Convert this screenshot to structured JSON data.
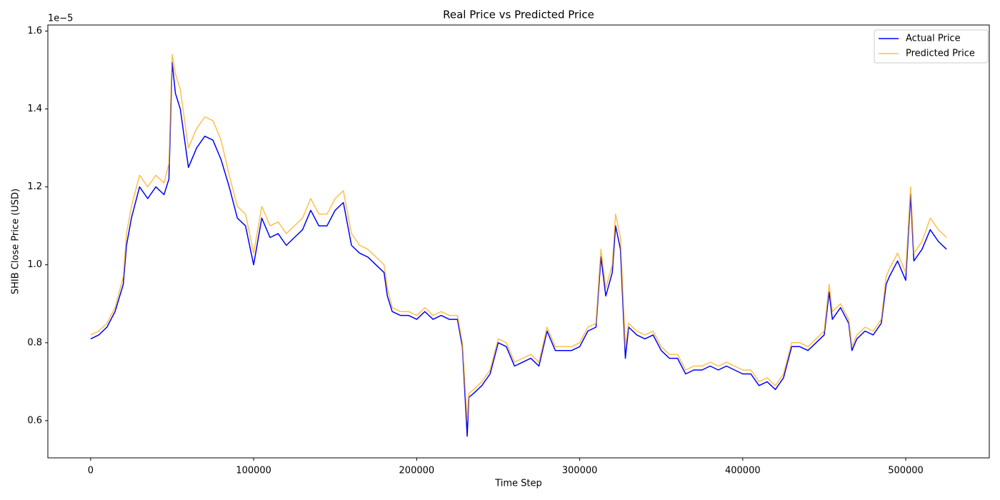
{
  "chart_data": {
    "type": "line",
    "title": "Real Price vs Predicted Price",
    "x_label": "Time Step",
    "y_label": "SHIB Close Price (USD)",
    "offset_text": "1e−5",
    "x": [
      0,
      5000,
      10000,
      15000,
      20000,
      22000,
      25000,
      30000,
      35000,
      40000,
      45000,
      48000,
      50000,
      52000,
      55000,
      60000,
      65000,
      70000,
      75000,
      80000,
      85000,
      90000,
      95000,
      100000,
      105000,
      110000,
      115000,
      120000,
      125000,
      130000,
      135000,
      140000,
      145000,
      150000,
      155000,
      160000,
      165000,
      170000,
      175000,
      180000,
      182000,
      185000,
      190000,
      195000,
      200000,
      205000,
      210000,
      215000,
      220000,
      225000,
      228000,
      231000,
      232000,
      235000,
      240000,
      245000,
      250000,
      255000,
      260000,
      265000,
      270000,
      275000,
      280000,
      285000,
      290000,
      295000,
      300000,
      305000,
      310000,
      313000,
      316000,
      320000,
      322000,
      325000,
      328000,
      330000,
      335000,
      340000,
      345000,
      350000,
      355000,
      360000,
      365000,
      370000,
      375000,
      380000,
      385000,
      390000,
      395000,
      400000,
      405000,
      410000,
      415000,
      420000,
      425000,
      430000,
      435000,
      440000,
      445000,
      450000,
      453000,
      455000,
      460000,
      465000,
      467000,
      470000,
      475000,
      480000,
      485000,
      488000,
      490000,
      495000,
      500000,
      503000,
      505000,
      510000,
      515000,
      520000,
      525000
    ],
    "series": [
      {
        "name": "Actual Price",
        "color": "#0000ff",
        "opacity": 1,
        "values": [
          0.81,
          0.82,
          0.84,
          0.88,
          0.95,
          1.05,
          1.12,
          1.2,
          1.17,
          1.2,
          1.18,
          1.22,
          1.52,
          1.44,
          1.4,
          1.25,
          1.3,
          1.33,
          1.32,
          1.27,
          1.2,
          1.12,
          1.1,
          1.0,
          1.12,
          1.07,
          1.08,
          1.05,
          1.07,
          1.09,
          1.14,
          1.1,
          1.1,
          1.14,
          1.16,
          1.05,
          1.03,
          1.02,
          1.0,
          0.98,
          0.92,
          0.88,
          0.87,
          0.87,
          0.86,
          0.88,
          0.86,
          0.87,
          0.86,
          0.86,
          0.79,
          0.56,
          0.66,
          0.67,
          0.69,
          0.72,
          0.8,
          0.79,
          0.74,
          0.75,
          0.76,
          0.74,
          0.83,
          0.78,
          0.78,
          0.78,
          0.79,
          0.83,
          0.84,
          1.02,
          0.92,
          0.98,
          1.1,
          1.04,
          0.76,
          0.84,
          0.82,
          0.81,
          0.82,
          0.78,
          0.76,
          0.76,
          0.72,
          0.73,
          0.73,
          0.74,
          0.73,
          0.74,
          0.73,
          0.72,
          0.72,
          0.69,
          0.7,
          0.68,
          0.71,
          0.79,
          0.79,
          0.78,
          0.8,
          0.82,
          0.93,
          0.86,
          0.89,
          0.85,
          0.78,
          0.81,
          0.83,
          0.82,
          0.85,
          0.95,
          0.97,
          1.01,
          0.96,
          1.18,
          1.01,
          1.04,
          1.09,
          1.06,
          1.04
        ]
      },
      {
        "name": "Predicted Price",
        "color": "#ffa500",
        "opacity": 0.7,
        "values": [
          0.82,
          0.83,
          0.85,
          0.89,
          0.97,
          1.08,
          1.15,
          1.23,
          1.2,
          1.23,
          1.21,
          1.26,
          1.54,
          1.49,
          1.45,
          1.3,
          1.35,
          1.38,
          1.37,
          1.32,
          1.23,
          1.15,
          1.13,
          1.03,
          1.15,
          1.1,
          1.11,
          1.08,
          1.1,
          1.12,
          1.17,
          1.13,
          1.13,
          1.17,
          1.19,
          1.08,
          1.05,
          1.04,
          1.02,
          1.0,
          0.94,
          0.89,
          0.88,
          0.88,
          0.87,
          0.89,
          0.87,
          0.88,
          0.87,
          0.87,
          0.8,
          0.6,
          0.67,
          0.68,
          0.7,
          0.73,
          0.81,
          0.8,
          0.75,
          0.76,
          0.77,
          0.75,
          0.84,
          0.79,
          0.79,
          0.79,
          0.8,
          0.84,
          0.85,
          1.04,
          0.94,
          1.0,
          1.13,
          1.07,
          0.79,
          0.85,
          0.83,
          0.82,
          0.83,
          0.79,
          0.77,
          0.77,
          0.73,
          0.74,
          0.74,
          0.75,
          0.74,
          0.75,
          0.74,
          0.73,
          0.73,
          0.7,
          0.71,
          0.69,
          0.72,
          0.8,
          0.8,
          0.79,
          0.81,
          0.83,
          0.95,
          0.88,
          0.9,
          0.86,
          0.79,
          0.82,
          0.84,
          0.83,
          0.86,
          0.97,
          0.99,
          1.03,
          0.98,
          1.2,
          1.03,
          1.06,
          1.12,
          1.09,
          1.07
        ]
      }
    ],
    "xlim": [
      -26250,
      551250
    ],
    "ylim": [
      0.5045,
      1.6155
    ],
    "xticks": [
      0,
      100000,
      200000,
      300000,
      400000,
      500000
    ],
    "yticks": [
      0.6,
      0.8,
      {
        "value": 1,
        "label": "1.0"
      },
      1.2,
      1.4,
      1.6
    ],
    "grid": false,
    "legend": "upper right"
  }
}
